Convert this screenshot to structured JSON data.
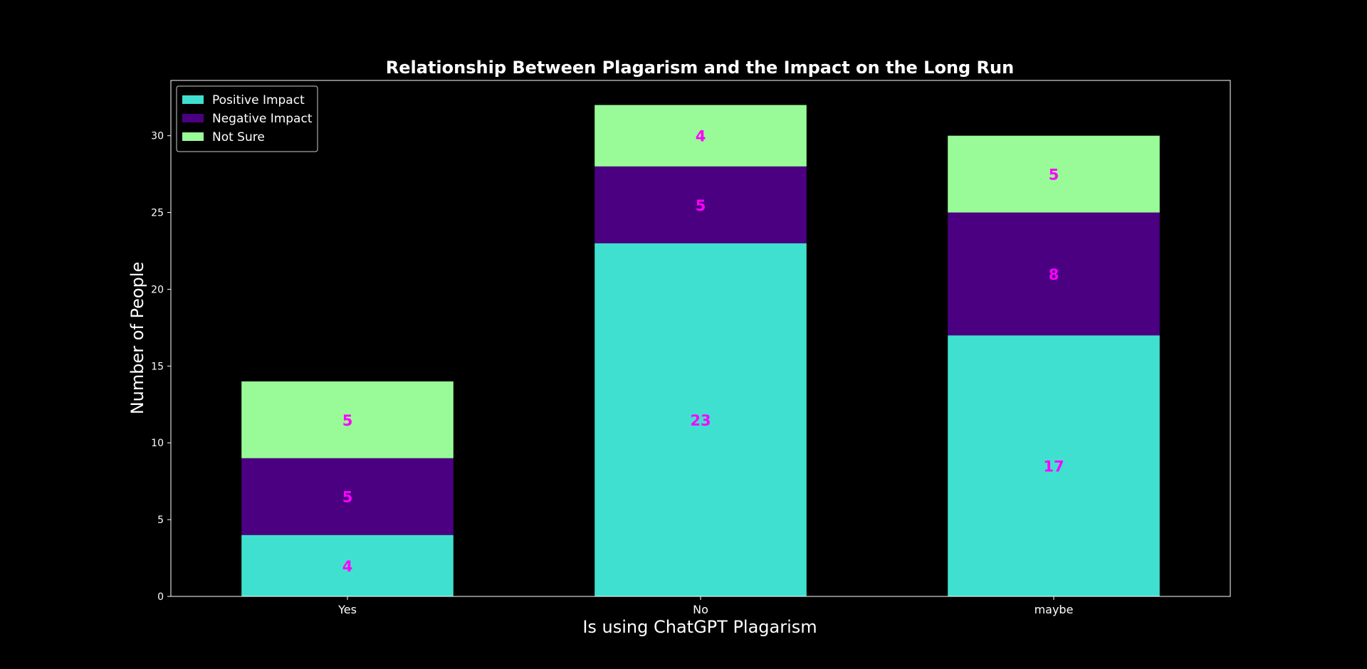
{
  "chart_data": {
    "type": "bar",
    "stacked": true,
    "title": "Relationship Between Plagarism and the Impact on the Long Run",
    "xlabel": "Is using ChatGPT Plagarism",
    "ylabel": "Number of People",
    "categories": [
      "Yes",
      "No",
      "maybe"
    ],
    "series": [
      {
        "name": "Positive Impact",
        "values": [
          4,
          23,
          17
        ],
        "color": "#40e0d0"
      },
      {
        "name": "Negative Impact",
        "values": [
          5,
          5,
          8
        ],
        "color": "#4b0082"
      },
      {
        "name": "Not Sure",
        "values": [
          5,
          4,
          5
        ],
        "color": "#98fb98"
      }
    ],
    "ylim": [
      0,
      33.6
    ],
    "yticks": [
      0,
      5,
      10,
      15,
      20,
      25,
      30
    ],
    "data_label_color": "#ff00ff",
    "background_color": "#000000",
    "axis_color": "#ffffff",
    "grid": false,
    "legend_position": "top-left"
  }
}
